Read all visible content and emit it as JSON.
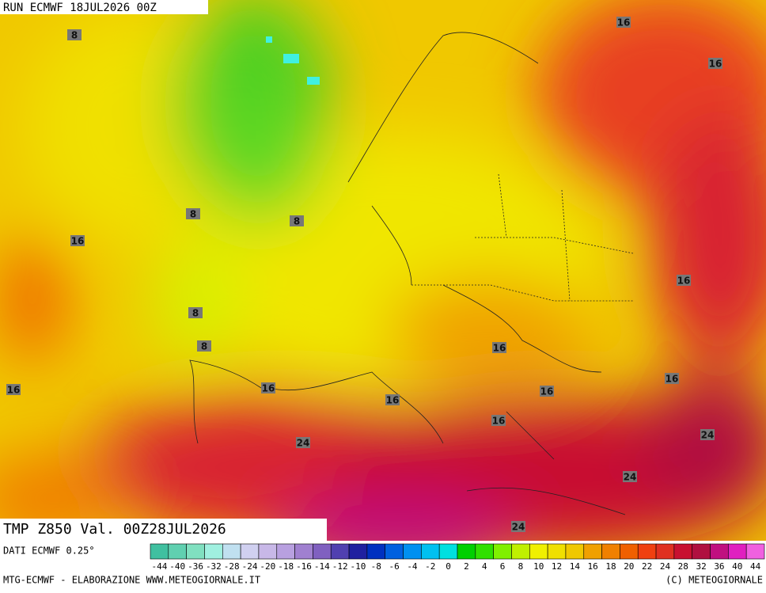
{
  "header": {
    "run": "RUN ECMWF 18JUL2026 00Z"
  },
  "title": "TMP Z850 Val. 00Z28JUL2026",
  "contour_labels": [
    8,
    16,
    16,
    8,
    8,
    16,
    16,
    8,
    8,
    16,
    16,
    16,
    16,
    16,
    16,
    16,
    24,
    24,
    24,
    24
  ],
  "legend": {
    "source": "DATI ECMWF 0.25°",
    "labels": [
      -44,
      -40,
      -36,
      -32,
      -28,
      -24,
      -20,
      -18,
      -16,
      -14,
      -12,
      -10,
      -8,
      -6,
      -4,
      -2,
      0,
      2,
      4,
      6,
      8,
      10,
      12,
      14,
      16,
      18,
      20,
      22,
      24,
      28,
      32,
      36,
      40,
      44
    ],
    "colors": [
      "#40c0a0",
      "#60d0b0",
      "#80e0c0",
      "#a0f0e0",
      "#c0e0f0",
      "#d0d0f0",
      "#c8b8e8",
      "#b8a0e0",
      "#a080d0",
      "#8060c0",
      "#5040b0",
      "#2020a0",
      "#0030c0",
      "#0060e0",
      "#0090f0",
      "#00c0f0",
      "#00e0e0",
      "#00d000",
      "#30e000",
      "#80f000",
      "#c0f000",
      "#f0f000",
      "#f0e000",
      "#f0c800",
      "#f0a000",
      "#f08000",
      "#f06000",
      "#f04010",
      "#e03020",
      "#c81030",
      "#b01040",
      "#c01080",
      "#e020c0",
      "#f060e0"
    ]
  },
  "footer": {
    "left": "MTG-ECMWF - ELABORAZIONE WWW.METEOGIORNALE.IT",
    "right": "(C) METEOGIORNALE"
  }
}
